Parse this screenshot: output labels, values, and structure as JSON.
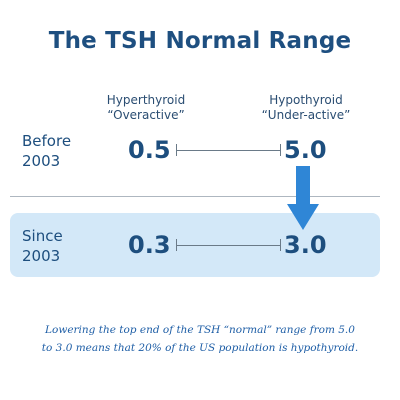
{
  "title": "The TSH Normal Range",
  "columns": {
    "left": {
      "line1": "Hyperthyroid",
      "line2": "“Overactive”"
    },
    "right": {
      "line1": "Hypothyroid",
      "line2": "“Under-active”"
    }
  },
  "rows": [
    {
      "label_line1": "Before",
      "label_line2": "2003",
      "low": "0.5",
      "high": "5.0"
    },
    {
      "label_line1": "Since",
      "label_line2": "2003",
      "low": "0.3",
      "high": "3.0"
    }
  ],
  "caption": {
    "line1": "Lowering the top end of the TSH “normal” range from 5.0",
    "line2": "to 3.0 means that 20% of the US population is hypothyroid."
  },
  "colors": {
    "title": "#1e4f80",
    "highlight_bg": "#d3e8f8",
    "arrow": "#2f86d6",
    "caption": "#1e5ea6"
  },
  "icons": {
    "arrow": "down-arrow-icon"
  }
}
